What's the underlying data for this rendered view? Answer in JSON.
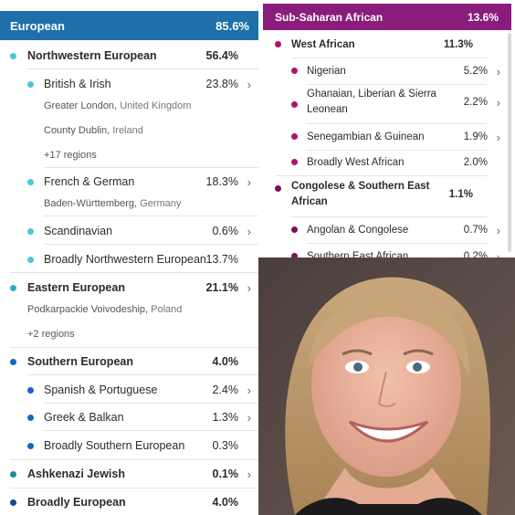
{
  "left": {
    "header": {
      "label": "European",
      "pct": "85.6%"
    },
    "groups": [
      {
        "label": "Northwestern European",
        "pct": "56.4%"
      },
      {
        "label": "British & Irish",
        "pct": "23.8%",
        "subs": [
          "Greater London",
          "United Kingdom",
          "County Dublin",
          "Ireland",
          "+17 regions"
        ]
      },
      {
        "label": "French & German",
        "pct": "18.3%",
        "subs": [
          "Baden-Württemberg",
          "Germany"
        ]
      },
      {
        "label": "Scandinavian",
        "pct": "0.6%"
      },
      {
        "label": "Broadly Northwestern European",
        "pct": "13.7%"
      },
      {
        "label": "Eastern European",
        "pct": "21.1%",
        "subs": [
          "Podkarpackie Voivodeship",
          "Poland",
          "+2 regions"
        ]
      },
      {
        "label": "Southern European",
        "pct": "4.0%"
      },
      {
        "label": "Spanish & Portuguese",
        "pct": "2.4%"
      },
      {
        "label": "Greek & Balkan",
        "pct": "1.3%"
      },
      {
        "label": "Broadly Southern European",
        "pct": "0.3%"
      },
      {
        "label": "Ashkenazi Jewish",
        "pct": "0.1%"
      },
      {
        "label": "Broadly European",
        "pct": "4.0%"
      }
    ]
  },
  "right": {
    "header": {
      "label": "Sub-Saharan African",
      "pct": "13.6%"
    },
    "items": [
      {
        "label": "West African",
        "pct": "11.3%"
      },
      {
        "label": "Nigerian",
        "pct": "5.2%"
      },
      {
        "label1": "Ghanaian, Liberian & Sierra",
        "label2": "Leonean",
        "pct": "2.2%"
      },
      {
        "label": "Senegambian & Guinean",
        "pct": "1.9%"
      },
      {
        "label": "Broadly West African",
        "pct": "2.0%"
      },
      {
        "label1": "Congolese & Southern East",
        "label2": "African",
        "pct": "1.1%"
      },
      {
        "label": "Angolan & Congolese",
        "pct": "0.7%"
      },
      {
        "label": "Southern East African",
        "pct": "0.2%"
      }
    ]
  },
  "colors": {
    "european_header": "#1f6fa8",
    "african_header": "#8a1d7b",
    "nw_dot": "#4fc3df",
    "eastern_dot": "#2bb3c0",
    "southern_dot": "#1565c0",
    "ashkenazi_dot": "#1a8a9a",
    "broad_eu_dot": "#0d4f8a",
    "west_african_dot": "#b0126e",
    "congolese_dot": "#7a0f5f"
  },
  "icons": {
    "chevron": "chevron-right-icon"
  }
}
